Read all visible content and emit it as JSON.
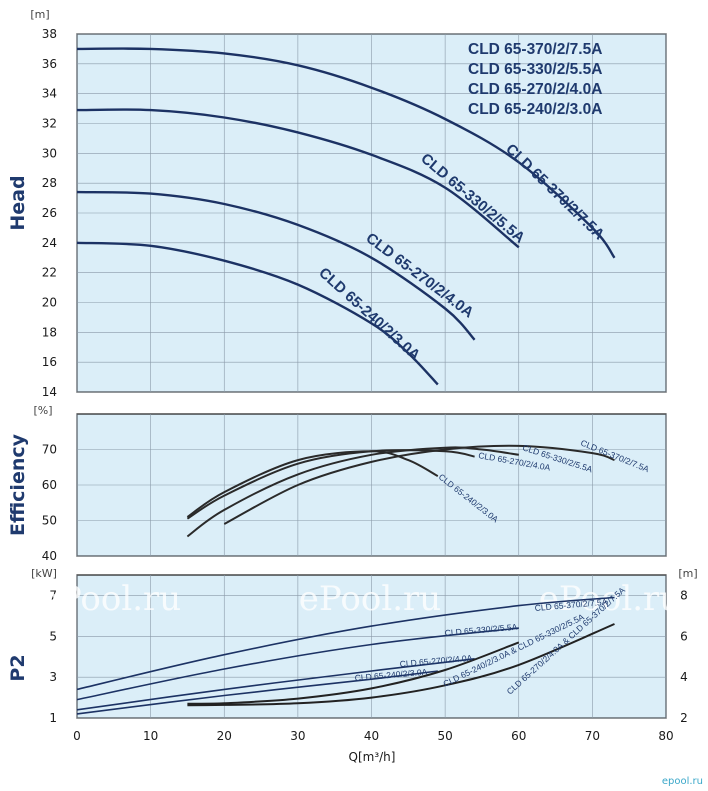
{
  "chart_data": [
    {
      "type": "line",
      "ylabel": "Head",
      "yunit": "[m]",
      "ylim": [
        14,
        38
      ],
      "yticks": [
        14,
        16,
        18,
        20,
        22,
        24,
        26,
        28,
        30,
        32,
        34,
        36,
        38
      ],
      "xlim": [
        0,
        80
      ],
      "grid": true,
      "legend": [
        "CLD 65-370/2/7.5A",
        "CLD 65-330/2/5.5A",
        "CLD 65-270/2/4.0A",
        "CLD 65-240/2/3.0A"
      ],
      "legend_position": "top-right",
      "series": [
        {
          "name": "CLD 65-370/2/7.5A",
          "x": [
            0,
            10,
            20,
            30,
            40,
            50,
            60,
            70,
            73
          ],
          "y": [
            37,
            37,
            36.7,
            35.9,
            34.4,
            32.3,
            29.4,
            25,
            23
          ]
        },
        {
          "name": "CLD 65-330/2/5.5A",
          "x": [
            0,
            10,
            20,
            30,
            40,
            50,
            60
          ],
          "y": [
            32.9,
            32.9,
            32.4,
            31.4,
            29.9,
            27.7,
            23.7
          ]
        },
        {
          "name": "CLD 65-270/2/4.0A",
          "x": [
            0,
            10,
            20,
            30,
            40,
            50,
            54
          ],
          "y": [
            27.4,
            27.3,
            26.6,
            25.2,
            23,
            19.6,
            17.5
          ]
        },
        {
          "name": "CLD 65-240/2/3.0A",
          "x": [
            0,
            10,
            20,
            30,
            40,
            45,
            49
          ],
          "y": [
            24,
            23.8,
            22.8,
            21.2,
            18.6,
            16.6,
            14.5
          ]
        }
      ]
    },
    {
      "type": "line",
      "ylabel": "Efficiency",
      "yunit": "[%]",
      "ylim": [
        40,
        80
      ],
      "yticks": [
        40,
        50,
        60,
        70
      ],
      "xlim": [
        0,
        80
      ],
      "grid": true,
      "series": [
        {
          "name": "CLD 65-370/2/7.5A",
          "x": [
            20,
            30,
            40,
            50,
            60,
            70,
            73
          ],
          "y": [
            49,
            60,
            66.5,
            70,
            71,
            69,
            67
          ]
        },
        {
          "name": "CLD 65-330/2/5.5A",
          "x": [
            15,
            20,
            30,
            40,
            50,
            55,
            60
          ],
          "y": [
            45.5,
            53,
            63,
            68.5,
            70.5,
            70,
            68.5
          ]
        },
        {
          "name": "CLD 65-270/2/4.0A",
          "x": [
            15,
            20,
            30,
            40,
            50,
            54
          ],
          "y": [
            50.5,
            57,
            66,
            69.5,
            69.5,
            68
          ]
        },
        {
          "name": "CLD 65-240/2/3.0A",
          "x": [
            15,
            20,
            30,
            40,
            45,
            49
          ],
          "y": [
            51,
            58,
            67,
            69.5,
            67,
            62.5
          ]
        }
      ]
    },
    {
      "type": "line",
      "ylabel": "P2",
      "yunit": "[kW]",
      "ylim": [
        1,
        8
      ],
      "yticks": [
        1,
        3,
        5,
        7
      ],
      "y2unit": "[m]",
      "y2lim": [
        2,
        9
      ],
      "y2ticks": [
        2,
        4,
        6,
        8
      ],
      "xlabel": "Q[m³/h]",
      "xlim": [
        0,
        80
      ],
      "xticks": [
        0,
        10,
        20,
        30,
        40,
        50,
        60,
        70,
        80
      ],
      "grid": true,
      "series": [
        {
          "name": "CLD 65-370/2/7.5A",
          "x": [
            0,
            20,
            40,
            60,
            73
          ],
          "y": [
            2.4,
            4.1,
            5.5,
            6.5,
            6.9
          ]
        },
        {
          "name": "CLD 65-330/2/5.5A",
          "x": [
            0,
            20,
            40,
            60
          ],
          "y": [
            1.9,
            3.4,
            4.6,
            5.4
          ]
        },
        {
          "name": "CLD 65-270/2/4.0A",
          "x": [
            0,
            20,
            40,
            54
          ],
          "y": [
            1.4,
            2.4,
            3.3,
            3.9
          ]
        },
        {
          "name": "CLD 65-240/2/3.0A",
          "x": [
            0,
            20,
            40,
            49
          ],
          "y": [
            1.2,
            2.1,
            2.9,
            3.3
          ]
        },
        {
          "name": "CLD 65-240/2/3.0A & CLD 65-330/2/5.5A",
          "axis": "right",
          "x": [
            15,
            20,
            30,
            40,
            50,
            60
          ],
          "y": [
            2.7,
            2.72,
            2.95,
            3.45,
            4.35,
            5.7
          ]
        },
        {
          "name": "CLD 65-270/2/4.0A & CLD 65-370/2/7.5A",
          "axis": "right",
          "x": [
            15,
            20,
            30,
            40,
            50,
            60,
            73
          ],
          "y": [
            2.62,
            2.64,
            2.72,
            3.0,
            3.6,
            4.6,
            6.6
          ]
        }
      ]
    }
  ],
  "watermark": "ePool.ru",
  "footer_logo": "epool.ru"
}
